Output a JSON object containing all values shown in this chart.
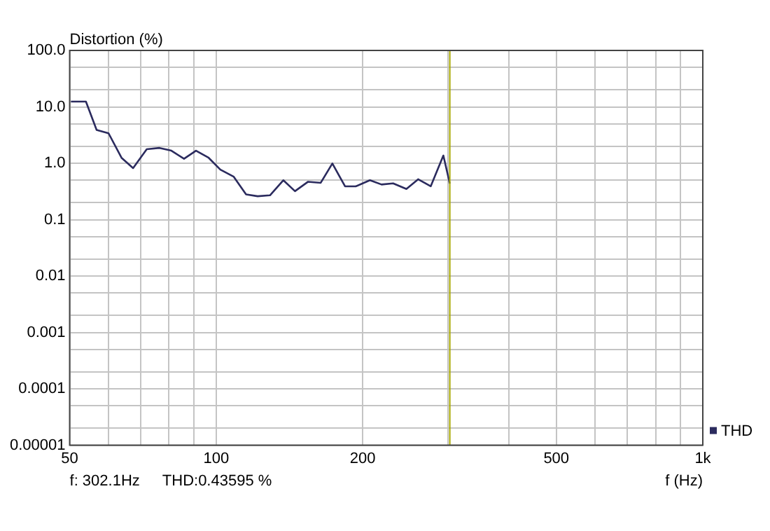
{
  "chart_data": {
    "type": "line",
    "ylabel": "Distortion (%)",
    "xlabel": "f (Hz)",
    "x": [
      50.3,
      54.0,
      56.8,
      60.1,
      63.9,
      67.5,
      72.0,
      76.5,
      80.9,
      85.9,
      90.9,
      96.5,
      102,
      108.6,
      115.2,
      121.7,
      129,
      137.4,
      145.2,
      154.5,
      164,
      173.3,
      184,
      193.6,
      207,
      218.7,
      231,
      246,
      260,
      276,
      293,
      302.1
    ],
    "series": [
      {
        "name": "THD",
        "color": "#2b2b5e",
        "values": [
          12.4,
          12.4,
          3.9,
          3.4,
          1.25,
          0.82,
          1.77,
          1.87,
          1.67,
          1.2,
          1.67,
          1.25,
          0.77,
          0.58,
          0.28,
          0.26,
          0.27,
          0.5,
          0.32,
          0.47,
          0.45,
          0.99,
          0.39,
          0.39,
          0.5,
          0.42,
          0.44,
          0.35,
          0.52,
          0.39,
          1.37,
          0.436
        ]
      }
    ],
    "log": "xy",
    "xlim": [
      50,
      1000
    ],
    "ylim": [
      1e-05,
      100
    ],
    "xticks": [
      50,
      {
        "value": 60,
        "label": null
      },
      {
        "value": 70,
        "label": null
      },
      {
        "value": 80,
        "label": null
      },
      {
        "value": 90,
        "label": null
      },
      100,
      200,
      {
        "value": 300,
        "label": null
      },
      {
        "value": 400,
        "label": null
      },
      500,
      {
        "value": 600,
        "label": null
      },
      {
        "value": 700,
        "label": null
      },
      {
        "value": 800,
        "label": null
      },
      {
        "value": 900,
        "label": null
      },
      {
        "value": 1000,
        "label": "1k"
      }
    ],
    "yticks": [
      {
        "value": 1e-05,
        "label": "0.00001"
      },
      {
        "value": 2e-05,
        "label": null
      },
      {
        "value": 5e-05,
        "label": null
      },
      {
        "value": 0.0001,
        "label": "0.0001"
      },
      {
        "value": 0.0002,
        "label": null
      },
      {
        "value": 0.0005,
        "label": null
      },
      {
        "value": 0.001,
        "label": "0.001"
      },
      {
        "value": 0.002,
        "label": null
      },
      {
        "value": 0.005,
        "label": null
      },
      {
        "value": 0.01,
        "label": "0.01"
      },
      {
        "value": 0.02,
        "label": null
      },
      {
        "value": 0.05,
        "label": null
      },
      {
        "value": 0.1,
        "label": "0.1"
      },
      {
        "value": 0.2,
        "label": null
      },
      {
        "value": 0.5,
        "label": null
      },
      {
        "value": 1,
        "label": "1.0"
      },
      {
        "value": 2,
        "label": null
      },
      {
        "value": 5,
        "label": null
      },
      {
        "value": 10,
        "label": "10.0"
      },
      {
        "value": 20,
        "label": null
      },
      {
        "value": 50,
        "label": null
      },
      {
        "value": 100,
        "label": "100.0"
      }
    ],
    "grid": true,
    "legend": "bottom right",
    "marker": "none",
    "line_style": "solid",
    "ref_lines": [
      {
        "axis": "x",
        "value": 302.1,
        "color": "#a8a800"
      }
    ],
    "annotations": [
      "f: 302.1Hz",
      "THD:0.43595 %"
    ]
  }
}
